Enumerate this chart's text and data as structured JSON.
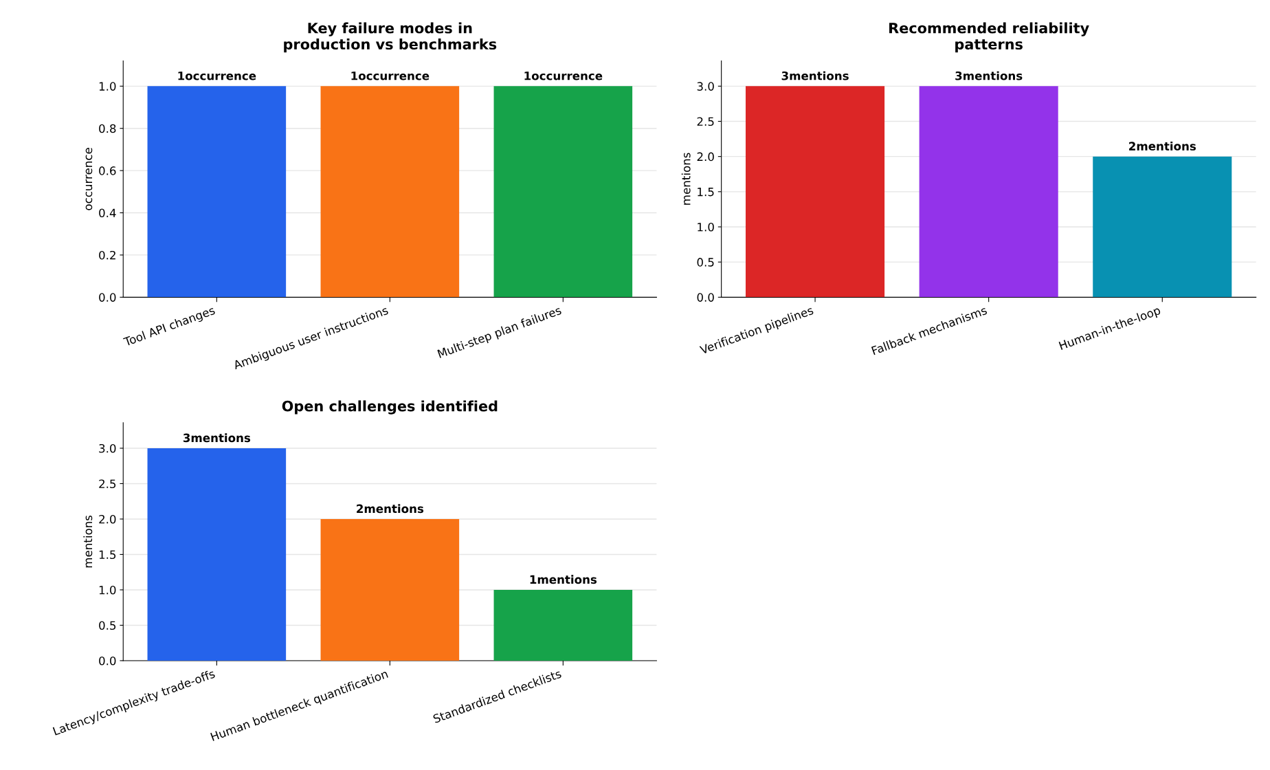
{
  "chart_data": [
    {
      "type": "bar",
      "title": "Key failure modes in\nproduction vs benchmarks",
      "ylabel": "occurrence",
      "categories": [
        "Tool API changes",
        "Ambiguous user instructions",
        "Multi-step plan failures"
      ],
      "values": [
        1,
        1,
        1
      ],
      "colors": [
        "#2563eb",
        "#f97316",
        "#16a34a"
      ],
      "value_labels": [
        "1occurrence",
        "1occurrence",
        "1occurrence"
      ],
      "ylim": [
        0,
        1.12
      ],
      "yticks": [
        {
          "value": 0,
          "label": "0.0"
        },
        0.2,
        0.4,
        0.6,
        0.8,
        {
          "value": 1,
          "label": "1.0"
        }
      ],
      "grid": "y",
      "legend": false
    },
    {
      "type": "bar",
      "title": "Recommended reliability\npatterns",
      "ylabel": "mentions",
      "categories": [
        "Verification pipelines",
        "Fallback mechanisms",
        "Human-in-the-loop"
      ],
      "values": [
        3,
        3,
        2
      ],
      "colors": [
        "#dc2626",
        "#9333ea",
        "#0891b2"
      ],
      "value_labels": [
        "3mentions",
        "3mentions",
        "2mentions"
      ],
      "ylim": [
        0,
        3.36
      ],
      "yticks": [
        {
          "value": 0,
          "label": "0.0"
        },
        0.5,
        {
          "value": 1,
          "label": "1.0"
        },
        1.5,
        {
          "value": 2,
          "label": "2.0"
        },
        2.5,
        {
          "value": 3,
          "label": "3.0"
        }
      ],
      "grid": "y",
      "legend": false
    },
    {
      "type": "bar",
      "title": "Open challenges identified",
      "ylabel": "mentions",
      "categories": [
        "Latency/complexity trade-offs",
        "Human bottleneck quantification",
        "Standardized checklists"
      ],
      "values": [
        3,
        2,
        1
      ],
      "colors": [
        "#2563eb",
        "#f97316",
        "#16a34a"
      ],
      "value_labels": [
        "3mentions",
        "2mentions",
        "1mentions"
      ],
      "ylim": [
        0,
        3.36
      ],
      "yticks": [
        {
          "value": 0,
          "label": "0.0"
        },
        0.5,
        {
          "value": 1,
          "label": "1.0"
        },
        1.5,
        {
          "value": 2,
          "label": "2.0"
        },
        2.5,
        {
          "value": 3,
          "label": "3.0"
        }
      ],
      "grid": "y",
      "legend": false
    }
  ]
}
